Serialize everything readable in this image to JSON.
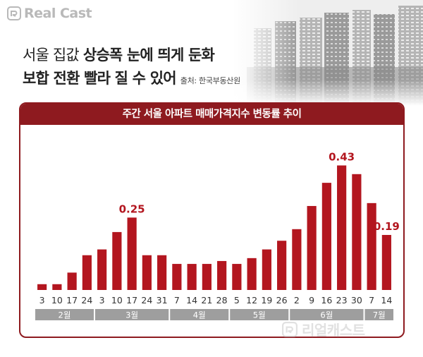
{
  "brand": {
    "logo_text": "Real Cast",
    "watermark_text": "리얼캐스트"
  },
  "headline": {
    "line1_normal": "서울 집값 ",
    "line1_bold": "상승폭 눈에 띄게 둔화",
    "line2_bold": "보합 전환 빨라 질 수 있어",
    "source": "출처: 한국부동산원"
  },
  "colors": {
    "accent": "#8e1a1f",
    "bar": "#b3161f",
    "label_value": "#b3161f",
    "month_band": "#9e9e9e"
  },
  "chart_data": {
    "type": "bar",
    "title": "주간 서울 아파트 매매가격지수 변동률 추이",
    "categories": [
      "3",
      "10",
      "17",
      "24",
      "3",
      "10",
      "17",
      "24",
      "31",
      "7",
      "14",
      "21",
      "28",
      "5",
      "12",
      "19",
      "26",
      "2",
      "9",
      "16",
      "23",
      "30",
      "7",
      "14"
    ],
    "month_groups": [
      {
        "label": "2월",
        "count": 4
      },
      {
        "label": "3월",
        "count": 5
      },
      {
        "label": "4월",
        "count": 4
      },
      {
        "label": "5월",
        "count": 4
      },
      {
        "label": "6월",
        "count": 5
      },
      {
        "label": "7월",
        "count": 2
      }
    ],
    "values": [
      0.02,
      0.02,
      0.06,
      0.12,
      0.14,
      0.2,
      0.25,
      0.12,
      0.12,
      0.09,
      0.09,
      0.09,
      0.1,
      0.09,
      0.11,
      0.14,
      0.17,
      0.21,
      0.29,
      0.37,
      0.43,
      0.4,
      0.3,
      0.19
    ],
    "data_labels": [
      {
        "index": 6,
        "text": "0.25"
      },
      {
        "index": 20,
        "text": "0.43"
      },
      {
        "index": 23,
        "text": "0.19"
      }
    ],
    "ylim": [
      0,
      0.5
    ],
    "grid": false
  }
}
